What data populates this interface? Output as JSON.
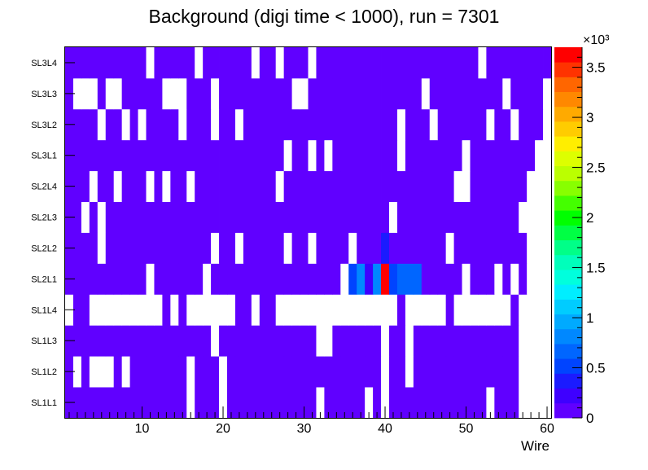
{
  "chart_data": {
    "type": "heatmap",
    "title": "Background (digi time < 1000), run = 7301",
    "xlabel": "Wire",
    "ylabel": "",
    "x_range": [
      0.5,
      60.5
    ],
    "x_ticks": [
      10,
      20,
      30,
      40,
      50,
      60
    ],
    "y_categories": [
      "SL1L1",
      "SL1L2",
      "SL1L3",
      "SL1L4",
      "SL2L1",
      "SL2L2",
      "SL2L3",
      "SL2L4",
      "SL3L1",
      "SL3L2",
      "SL3L3",
      "SL3L4"
    ],
    "z_range": [
      0,
      3700
    ],
    "z_multiplier_label": "×10³",
    "z_tick_labels": [
      "0",
      "0.5",
      "1",
      "1.5",
      "2",
      "2.5",
      "3",
      "3.5"
    ],
    "z_tick_values": [
      0,
      500,
      1000,
      1500,
      2000,
      2500,
      3000,
      3500
    ],
    "empty_color": "#ffffff",
    "palette": [
      "#6000ff",
      "#3e00ff",
      "#1b1bff",
      "#0044ff",
      "#0066ff",
      "#0088ff",
      "#00aaff",
      "#00ccff",
      "#00eeff",
      "#00ffdd",
      "#00ffbb",
      "#00ff88",
      "#00ff44",
      "#00ff00",
      "#44ff00",
      "#88ff00",
      "#bbff00",
      "#ddff00",
      "#ffee00",
      "#ffcc00",
      "#ffaa00",
      "#ff8800",
      "#ff6600",
      "#ff3300",
      "#ff0000"
    ],
    "default_value": 60,
    "empty_ranges": [
      [
        0,
        16,
        16
      ],
      [
        0,
        20,
        20
      ],
      [
        0,
        32,
        32
      ],
      [
        0,
        38,
        38
      ],
      [
        0,
        40,
        40
      ],
      [
        0,
        53,
        53
      ],
      [
        0,
        57,
        60
      ],
      [
        1,
        2,
        2
      ],
      [
        1,
        4,
        6
      ],
      [
        1,
        8,
        8
      ],
      [
        1,
        16,
        16
      ],
      [
        1,
        20,
        20
      ],
      [
        1,
        40,
        40
      ],
      [
        1,
        43,
        43
      ],
      [
        1,
        57,
        60
      ],
      [
        2,
        19,
        19
      ],
      [
        2,
        32,
        33
      ],
      [
        2,
        40,
        40
      ],
      [
        2,
        43,
        43
      ],
      [
        2,
        57,
        60
      ],
      [
        3,
        1,
        1
      ],
      [
        3,
        4,
        12
      ],
      [
        3,
        14,
        14
      ],
      [
        3,
        16,
        21
      ],
      [
        3,
        24,
        24
      ],
      [
        3,
        27,
        41
      ],
      [
        3,
        43,
        47
      ],
      [
        3,
        49,
        55
      ],
      [
        3,
        57,
        60
      ],
      [
        4,
        11,
        11
      ],
      [
        4,
        18,
        18
      ],
      [
        4,
        35,
        35
      ],
      [
        4,
        50,
        50
      ],
      [
        4,
        54,
        54
      ],
      [
        4,
        56,
        56
      ],
      [
        4,
        58,
        60
      ],
      [
        5,
        5,
        5
      ],
      [
        5,
        19,
        19
      ],
      [
        5,
        22,
        22
      ],
      [
        5,
        28,
        28
      ],
      [
        5,
        31,
        31
      ],
      [
        5,
        36,
        36
      ],
      [
        5,
        48,
        48
      ],
      [
        5,
        58,
        60
      ],
      [
        6,
        3,
        3
      ],
      [
        6,
        5,
        5
      ],
      [
        6,
        41,
        41
      ],
      [
        6,
        57,
        60
      ],
      [
        7,
        4,
        4
      ],
      [
        7,
        7,
        7
      ],
      [
        7,
        11,
        11
      ],
      [
        7,
        13,
        13
      ],
      [
        7,
        16,
        16
      ],
      [
        7,
        27,
        27
      ],
      [
        7,
        49,
        50
      ],
      [
        7,
        58,
        60
      ],
      [
        8,
        28,
        28
      ],
      [
        8,
        31,
        31
      ],
      [
        8,
        33,
        33
      ],
      [
        8,
        42,
        42
      ],
      [
        8,
        50,
        50
      ],
      [
        8,
        59,
        60
      ],
      [
        9,
        5,
        5
      ],
      [
        9,
        8,
        8
      ],
      [
        9,
        10,
        10
      ],
      [
        9,
        15,
        15
      ],
      [
        9,
        19,
        19
      ],
      [
        9,
        22,
        22
      ],
      [
        9,
        42,
        42
      ],
      [
        9,
        46,
        46
      ],
      [
        9,
        53,
        53
      ],
      [
        9,
        56,
        56
      ],
      [
        9,
        60,
        60
      ],
      [
        10,
        2,
        4
      ],
      [
        10,
        6,
        7
      ],
      [
        10,
        13,
        15
      ],
      [
        10,
        19,
        19
      ],
      [
        10,
        29,
        30
      ],
      [
        10,
        45,
        45
      ],
      [
        10,
        55,
        55
      ],
      [
        10,
        60,
        60
      ],
      [
        11,
        11,
        11
      ],
      [
        11,
        17,
        17
      ],
      [
        11,
        24,
        24
      ],
      [
        11,
        27,
        27
      ],
      [
        11,
        31,
        31
      ],
      [
        11,
        52,
        52
      ]
    ],
    "hot_cells": [
      [
        4,
        36,
        450
      ],
      [
        4,
        37,
        780
      ],
      [
        4,
        38,
        200
      ],
      [
        4,
        39,
        760
      ],
      [
        4,
        40,
        3650
      ],
      [
        4,
        41,
        550
      ],
      [
        4,
        42,
        700
      ],
      [
        4,
        43,
        700
      ],
      [
        4,
        44,
        700
      ],
      [
        5,
        40,
        300
      ]
    ]
  }
}
